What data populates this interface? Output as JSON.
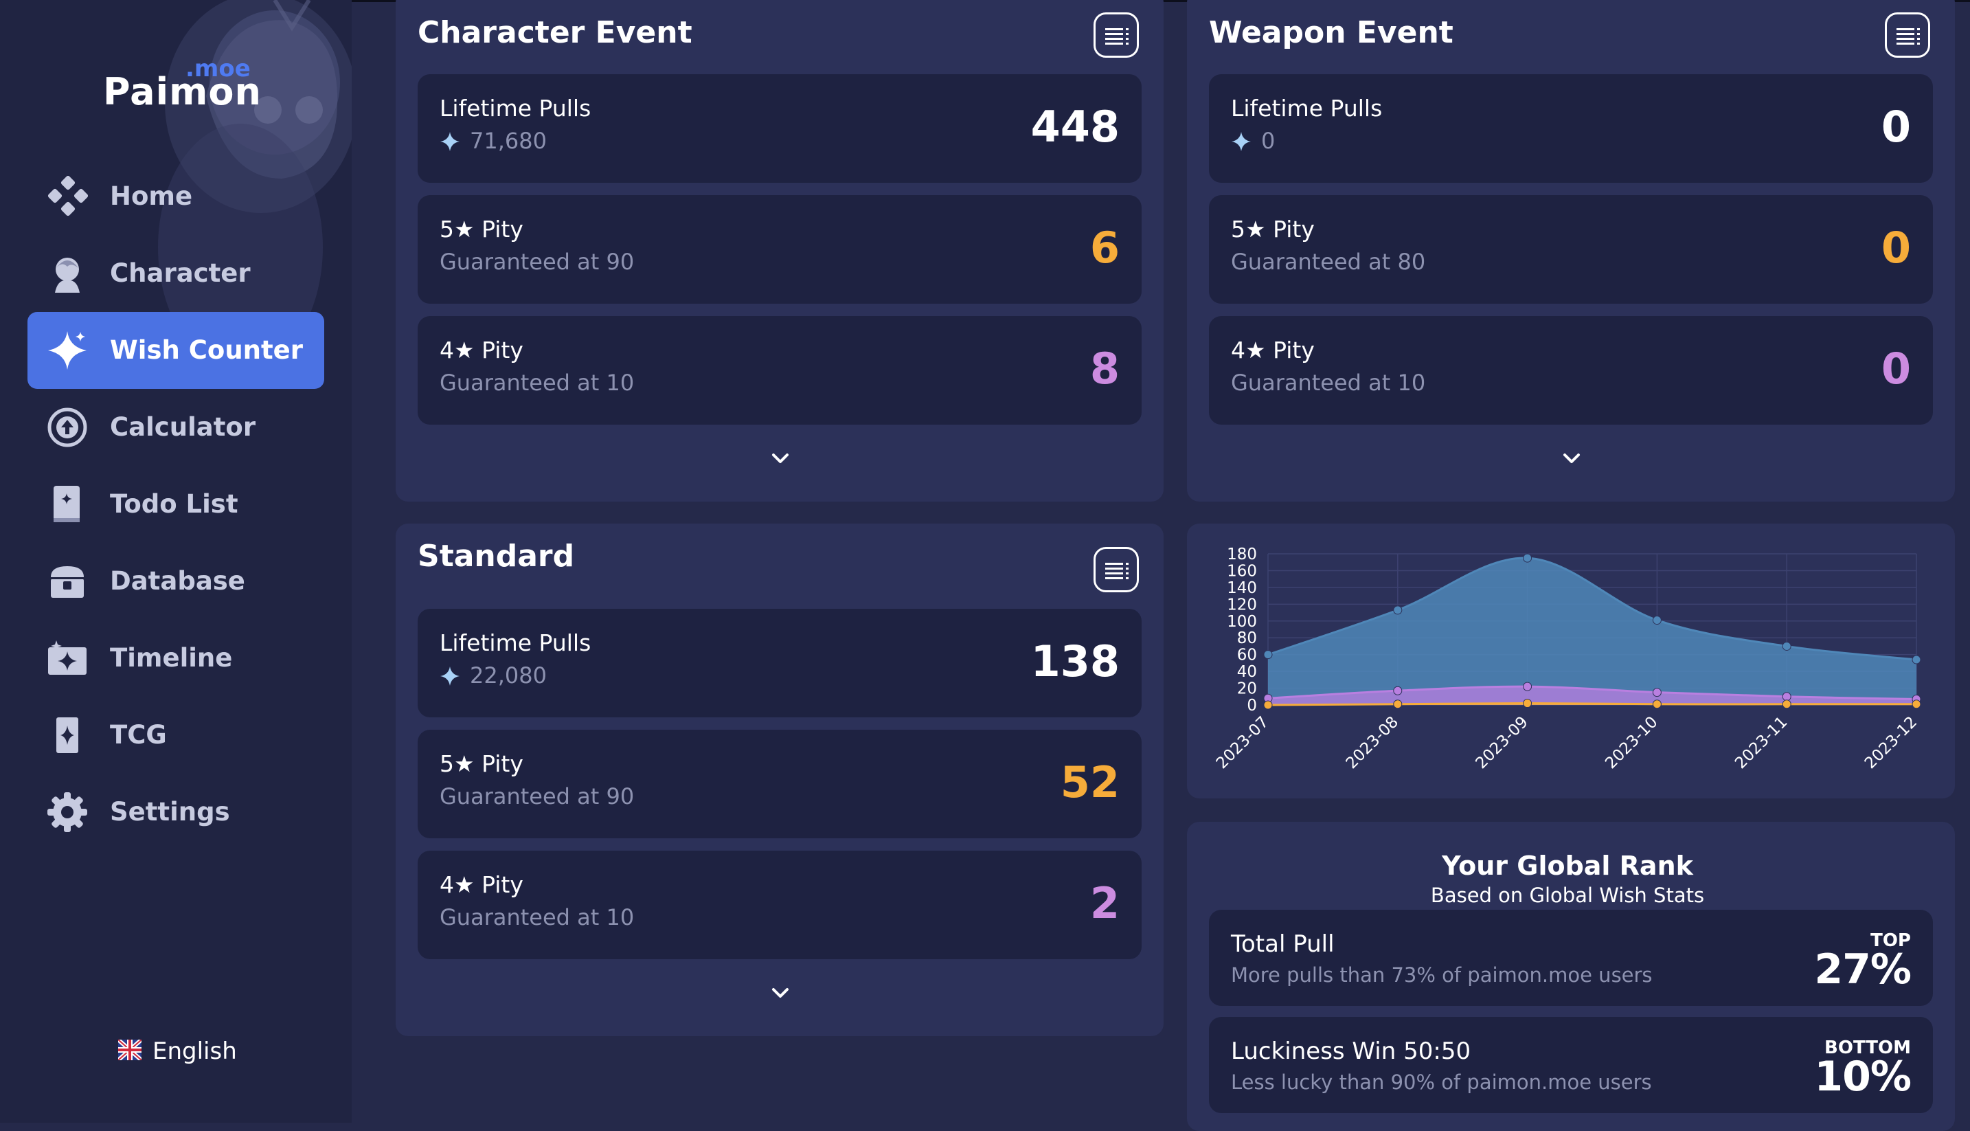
{
  "sidebar": {
    "logo": {
      "name": "Paimon",
      "suffix": ".moe"
    },
    "items": [
      {
        "label": "Home",
        "icon": "home-icon"
      },
      {
        "label": "Character",
        "icon": "character-icon"
      },
      {
        "label": "Wish Counter",
        "icon": "wish-sparkle-icon",
        "active": true
      },
      {
        "label": "Calculator",
        "icon": "calculator-icon"
      },
      {
        "label": "Todo List",
        "icon": "todo-list-icon"
      },
      {
        "label": "Database",
        "icon": "database-chest-icon"
      },
      {
        "label": "Timeline",
        "icon": "timeline-icon"
      },
      {
        "label": "TCG",
        "icon": "tcg-card-icon"
      },
      {
        "label": "Settings",
        "icon": "settings-gear-icon"
      }
    ],
    "language": "English"
  },
  "character_event": {
    "title": "Character Event",
    "lifetime": {
      "label": "Lifetime Pulls",
      "primogems": "71,680",
      "value": "448"
    },
    "five_star": {
      "label": "5★ Pity",
      "sub": "Guaranteed at 90",
      "value": "6"
    },
    "four_star": {
      "label": "4★ Pity",
      "sub": "Guaranteed at 10",
      "value": "8"
    }
  },
  "weapon_event": {
    "title": "Weapon Event",
    "lifetime": {
      "label": "Lifetime Pulls",
      "primogems": "0",
      "value": "0"
    },
    "five_star": {
      "label": "5★ Pity",
      "sub": "Guaranteed at 80",
      "value": "0"
    },
    "four_star": {
      "label": "4★ Pity",
      "sub": "Guaranteed at 10",
      "value": "0"
    }
  },
  "standard": {
    "title": "Standard",
    "lifetime": {
      "label": "Lifetime Pulls",
      "primogems": "22,080",
      "value": "138"
    },
    "five_star": {
      "label": "5★ Pity",
      "sub": "Guaranteed at 90",
      "value": "52"
    },
    "four_star": {
      "label": "4★ Pity",
      "sub": "Guaranteed at 10",
      "value": "2"
    }
  },
  "chart_data": {
    "type": "area",
    "x": [
      "2023-07",
      "2023-08",
      "2023-09",
      "2023-10",
      "2023-11",
      "2023-12"
    ],
    "ylim": [
      0,
      180
    ],
    "yticks": [
      0,
      20,
      40,
      60,
      80,
      100,
      120,
      140,
      160,
      180
    ],
    "grid": true,
    "series": [
      {
        "values": [
          60,
          113,
          175,
          101,
          70,
          54
        ],
        "color": "#4f87b8"
      },
      {
        "values": [
          8,
          17,
          22,
          15,
          10,
          7
        ],
        "color": "#b97fe0"
      },
      {
        "values": [
          0,
          1,
          2,
          1,
          1,
          1
        ],
        "color": "#f6ac3a"
      }
    ]
  },
  "global_rank": {
    "title": "Your Global Rank",
    "subtitle": "Based on Global Wish Stats",
    "total": {
      "label": "Total Pull",
      "desc": "More pulls than 73% of paimon.moe users",
      "word": "TOP",
      "pct": "27%"
    },
    "luck": {
      "label": "Luckiness Win 50:50",
      "desc": "Less lucky than 90% of paimon.moe users",
      "word": "BOTTOM",
      "pct": "10%"
    }
  },
  "colors": {
    "accent": "#4b72e3",
    "five_star": "#f6ac3a",
    "four_star": "#cc8ce0",
    "panel": "#2c3159",
    "card": "#1e2241"
  }
}
